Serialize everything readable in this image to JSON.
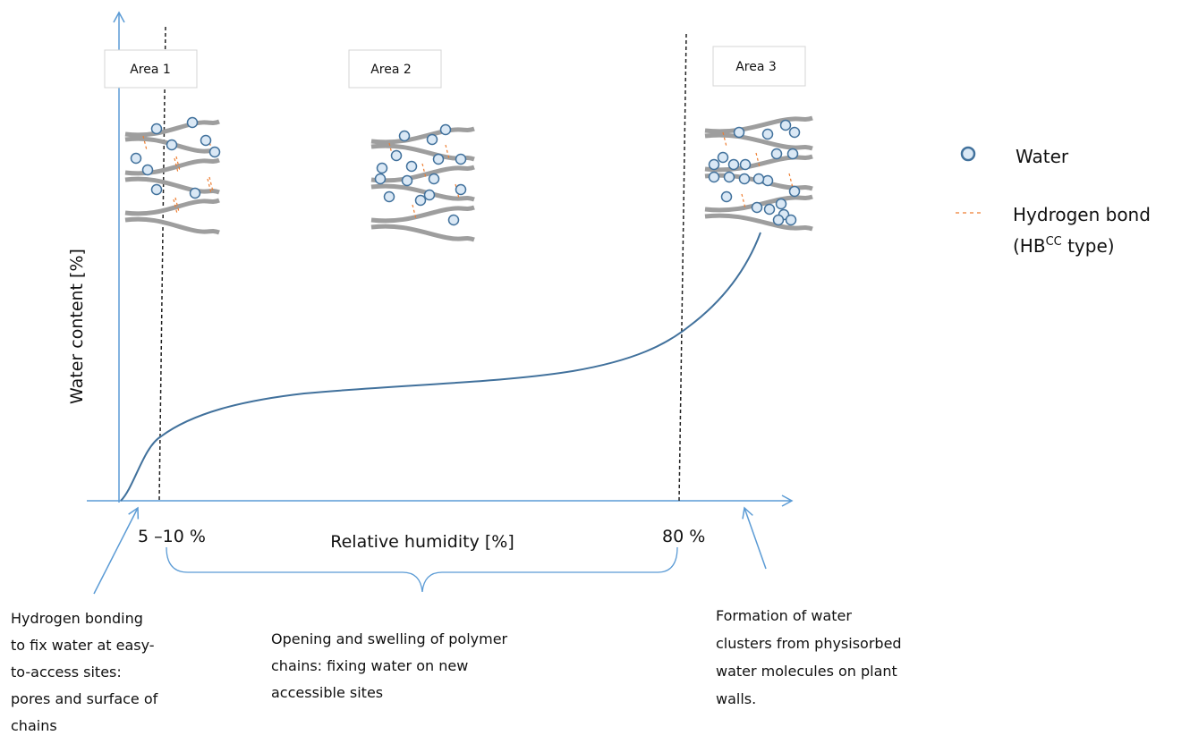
{
  "areas": [
    {
      "label": "Area 1"
    },
    {
      "label": "Area 2"
    },
    {
      "label": "Area 3"
    }
  ],
  "axes": {
    "y_label": "Water content [%]",
    "x_label": "Relative humidity [%]",
    "x_markers": [
      "5 –10 %",
      "80 %"
    ]
  },
  "legend": {
    "items": [
      {
        "label": "Water"
      },
      {
        "label": "Hydrogen bond",
        "note": {
          "prefix": "(HB",
          "superscript": "CC",
          "suffix": " type)"
        }
      }
    ]
  },
  "annotations": [
    {
      "lines": [
        "Hydrogen bonding",
        "to fix water at easy-",
        "to-access sites:",
        "pores and surface of",
        "chains"
      ]
    },
    {
      "lines": [
        "Opening and swelling of polymer",
        "chains: fixing water on new",
        "accessible sites"
      ]
    },
    {
      "lines": [
        "Formation of water",
        "clusters from physisorbed",
        "water molecules on plant",
        "walls."
      ]
    }
  ]
}
